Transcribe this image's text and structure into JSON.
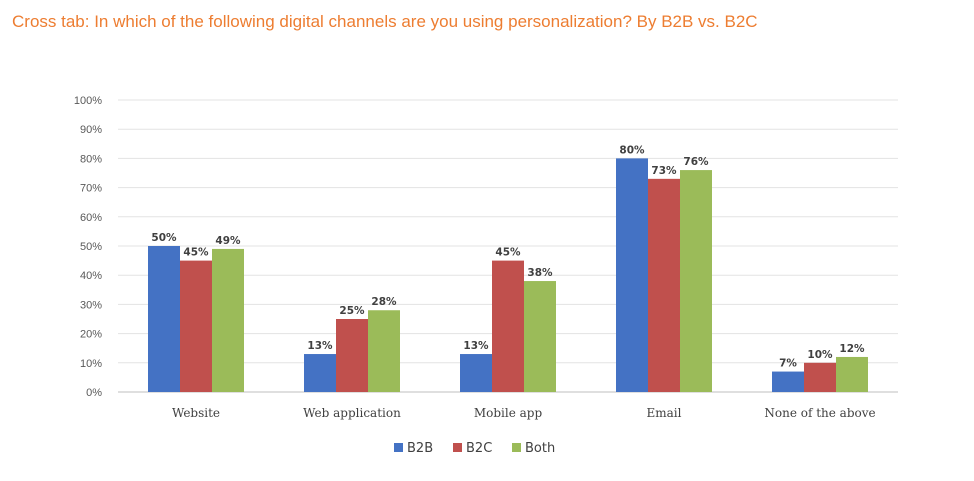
{
  "chart_data": {
    "type": "bar",
    "title": "Cross tab: In which of the following digital channels are you using personalization? By B2B vs. B2C",
    "categories": [
      "Website",
      "Web application",
      "Mobile app",
      "Email",
      "None of the above"
    ],
    "series": [
      {
        "name": "B2B",
        "color": "#4472c4",
        "values": [
          50,
          13,
          13,
          80,
          7
        ]
      },
      {
        "name": "B2C",
        "color": "#c0504d",
        "values": [
          45,
          25,
          45,
          73,
          10
        ]
      },
      {
        "name": "Both",
        "color": "#9bbb59",
        "values": [
          49,
          28,
          38,
          76,
          12
        ]
      }
    ],
    "ylim": [
      0,
      100
    ],
    "yticks": [
      "0%",
      "10%",
      "20%",
      "30%",
      "40%",
      "50%",
      "60%",
      "70%",
      "80%",
      "90%",
      "100%"
    ],
    "value_suffix": "%",
    "grid": true,
    "legend_position": "bottom"
  }
}
